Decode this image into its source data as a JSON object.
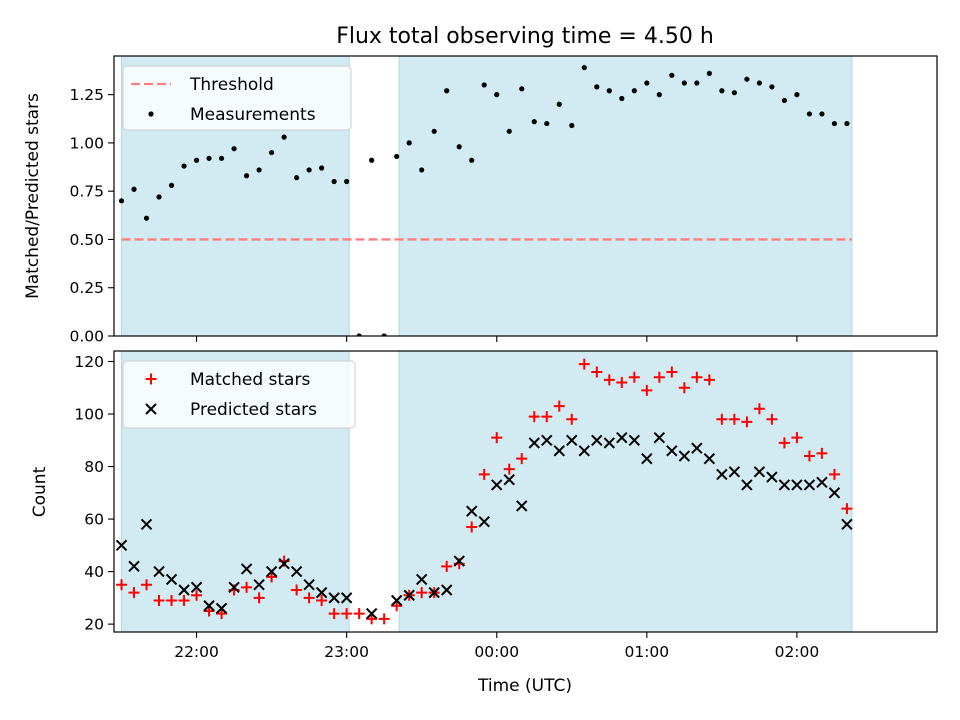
{
  "figure": {
    "title": "Flux total observing time = 4.50 h"
  },
  "chart_data": [
    {
      "type": "scatter",
      "title": "Flux total observing time = 4.50 h",
      "xlabel": "",
      "ylabel": "Matched/Predicted stars",
      "xlim": [
        "21:27",
        "02:56"
      ],
      "ylim": [
        0,
        1.45
      ],
      "yticks": [
        "0.00",
        "0.25",
        "0.50",
        "0.75",
        "1.00",
        "1.25"
      ],
      "grid": false,
      "legend": "top-left",
      "shaded_intervals": [
        [
          "21:30",
          "23:01"
        ],
        [
          "23:21",
          "02:22"
        ]
      ],
      "shade_color": "#add8e6",
      "threshold": {
        "name": "Threshold",
        "value": 0.5,
        "color": "#ff7f7f"
      },
      "series": [
        {
          "name": "Measurements",
          "color": "#000000",
          "marker": "dot",
          "x": [
            "21:30",
            "21:35",
            "21:40",
            "21:45",
            "21:50",
            "21:55",
            "22:00",
            "22:05",
            "22:10",
            "22:15",
            "22:20",
            "22:25",
            "22:30",
            "22:35",
            "22:40",
            "22:45",
            "22:50",
            "22:55",
            "23:00",
            "23:05",
            "23:10",
            "23:15",
            "23:20",
            "23:25",
            "23:30",
            "23:35",
            "23:40",
            "23:45",
            "23:50",
            "23:55",
            "00:00",
            "00:05",
            "00:10",
            "00:15",
            "00:20",
            "00:25",
            "00:30",
            "00:35",
            "00:40",
            "00:45",
            "00:50",
            "00:55",
            "01:00",
            "01:05",
            "01:10",
            "01:15",
            "01:20",
            "01:25",
            "01:30",
            "01:35",
            "01:40",
            "01:45",
            "01:50",
            "01:55",
            "02:00",
            "02:05",
            "02:10",
            "02:15",
            "02:20"
          ],
          "y": [
            0.7,
            0.76,
            0.61,
            0.72,
            0.78,
            0.88,
            0.91,
            0.92,
            0.92,
            0.97,
            0.83,
            0.86,
            0.95,
            1.03,
            0.82,
            0.86,
            0.87,
            0.8,
            0.8,
            0.0,
            0.91,
            0.0,
            0.93,
            1.0,
            0.86,
            1.06,
            1.27,
            0.98,
            0.91,
            1.3,
            1.25,
            1.06,
            1.28,
            1.11,
            1.1,
            1.2,
            1.09,
            1.39,
            1.29,
            1.27,
            1.23,
            1.27,
            1.31,
            1.25,
            1.35,
            1.31,
            1.31,
            1.36,
            1.27,
            1.26,
            1.33,
            1.31,
            1.29,
            1.22,
            1.25,
            1.15,
            1.15,
            1.1,
            1.1
          ]
        }
      ]
    },
    {
      "type": "scatter",
      "title": "",
      "xlabel": "Time (UTC)",
      "ylabel": "Count",
      "xlim": [
        "21:27",
        "02:56"
      ],
      "ylim": [
        17,
        124
      ],
      "yticks": [
        "20",
        "40",
        "60",
        "80",
        "100",
        "120"
      ],
      "xticks": [
        "22:00",
        "23:00",
        "00:00",
        "01:00",
        "02:00"
      ],
      "grid": false,
      "legend": "top-left",
      "shaded_intervals": [
        [
          "21:30",
          "23:01"
        ],
        [
          "23:21",
          "02:22"
        ]
      ],
      "shade_color": "#add8e6",
      "series": [
        {
          "name": "Matched stars",
          "color": "#ff0000",
          "marker": "plus",
          "x": [
            "21:30",
            "21:35",
            "21:40",
            "21:45",
            "21:50",
            "21:55",
            "22:00",
            "22:05",
            "22:10",
            "22:15",
            "22:20",
            "22:25",
            "22:30",
            "22:35",
            "22:40",
            "22:45",
            "22:50",
            "22:55",
            "23:00",
            "23:05",
            "23:10",
            "23:15",
            "23:20",
            "23:25",
            "23:30",
            "23:35",
            "23:40",
            "23:45",
            "23:50",
            "23:55",
            "00:00",
            "00:05",
            "00:10",
            "00:15",
            "00:20",
            "00:25",
            "00:30",
            "00:35",
            "00:40",
            "00:45",
            "00:50",
            "00:55",
            "01:00",
            "01:05",
            "01:10",
            "01:15",
            "01:20",
            "01:25",
            "01:30",
            "01:35",
            "01:40",
            "01:45",
            "01:50",
            "01:55",
            "02:00",
            "02:05",
            "02:10",
            "02:15",
            "02:20"
          ],
          "y": [
            35,
            32,
            35,
            29,
            29,
            29,
            31,
            25,
            24,
            33,
            34,
            30,
            38,
            44,
            33,
            30,
            29,
            24,
            24,
            24,
            22,
            22,
            27,
            31,
            32,
            32,
            42,
            43,
            57,
            77,
            91,
            79,
            83,
            99,
            99,
            103,
            98,
            119,
            116,
            113,
            112,
            114,
            109,
            114,
            116,
            110,
            114,
            113,
            98,
            98,
            97,
            102,
            98,
            89,
            91,
            84,
            85,
            77,
            64
          ]
        },
        {
          "name": "Predicted stars",
          "color": "#000000",
          "marker": "cross",
          "x": [
            "21:30",
            "21:35",
            "21:40",
            "21:45",
            "21:50",
            "21:55",
            "22:00",
            "22:05",
            "22:10",
            "22:15",
            "22:20",
            "22:25",
            "22:30",
            "22:35",
            "22:40",
            "22:45",
            "22:50",
            "22:55",
            "23:00",
            "23:10",
            "23:20",
            "23:25",
            "23:30",
            "23:35",
            "23:40",
            "23:45",
            "23:50",
            "23:55",
            "00:00",
            "00:05",
            "00:10",
            "00:15",
            "00:20",
            "00:25",
            "00:30",
            "00:35",
            "00:40",
            "00:45",
            "00:50",
            "00:55",
            "01:00",
            "01:05",
            "01:10",
            "01:15",
            "01:20",
            "01:25",
            "01:30",
            "01:35",
            "01:40",
            "01:45",
            "01:50",
            "01:55",
            "02:00",
            "02:05",
            "02:10",
            "02:15",
            "02:20"
          ],
          "y": [
            50,
            42,
            58,
            40,
            37,
            33,
            34,
            27,
            26,
            34,
            41,
            35,
            40,
            43,
            40,
            35,
            32,
            30,
            30,
            24,
            29,
            31,
            37,
            32,
            33,
            44,
            63,
            59,
            73,
            75,
            65,
            89,
            90,
            86,
            90,
            86,
            90,
            89,
            91,
            90,
            83,
            91,
            86,
            84,
            87,
            83,
            77,
            78,
            73,
            78,
            76,
            73,
            73,
            73,
            74,
            70,
            58
          ]
        }
      ]
    }
  ]
}
